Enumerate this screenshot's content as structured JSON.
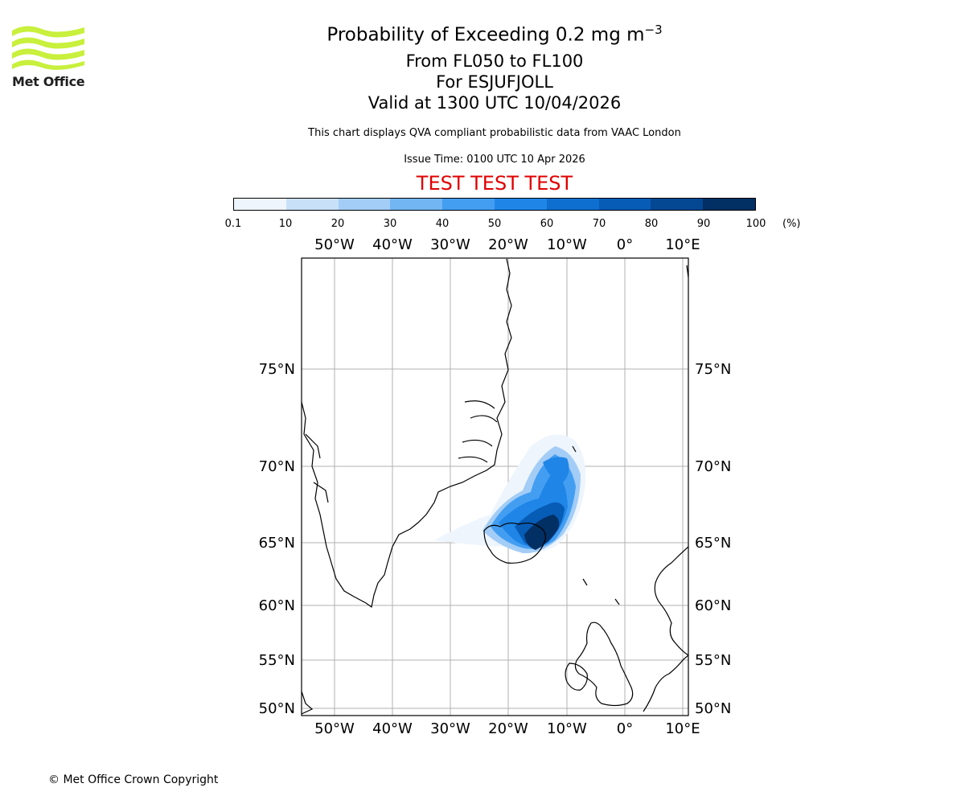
{
  "header": {
    "title_main": "Probability of Exceeding 0.2 mg m",
    "title_sup": "−3",
    "flight_levels": "From FL050 to FL100",
    "volcano": "For ESJUFJOLL",
    "valid_time": "Valid at 1300 UTC 10/04/2026",
    "description": "This chart displays QVA compliant probabilistic data from VAAC London",
    "issue_time": "Issue Time: 0100 UTC 10 Apr 2026",
    "test_banner": "TEST TEST TEST"
  },
  "logo": {
    "text": "Met Office",
    "color": "#c8f03c"
  },
  "colorbar": {
    "ticks": [
      "0.1",
      "10",
      "20",
      "30",
      "40",
      "50",
      "60",
      "70",
      "80",
      "90",
      "100"
    ],
    "unit": "(%)",
    "colors": [
      "#eef5fd",
      "#c8e0f8",
      "#a3cdf6",
      "#72b6f4",
      "#439ef2",
      "#1f86e8",
      "#0e6fd0",
      "#075cb6",
      "#044793",
      "#022f64"
    ]
  },
  "map": {
    "lon_labels": [
      "50°W",
      "40°W",
      "30°W",
      "20°W",
      "10°W",
      "0°",
      "10°E"
    ],
    "lat_labels": [
      "75°N",
      "70°N",
      "65°N",
      "60°N",
      "55°N",
      "50°N"
    ],
    "grid": true
  },
  "footer": {
    "copyright": "© Met Office Crown Copyright"
  }
}
